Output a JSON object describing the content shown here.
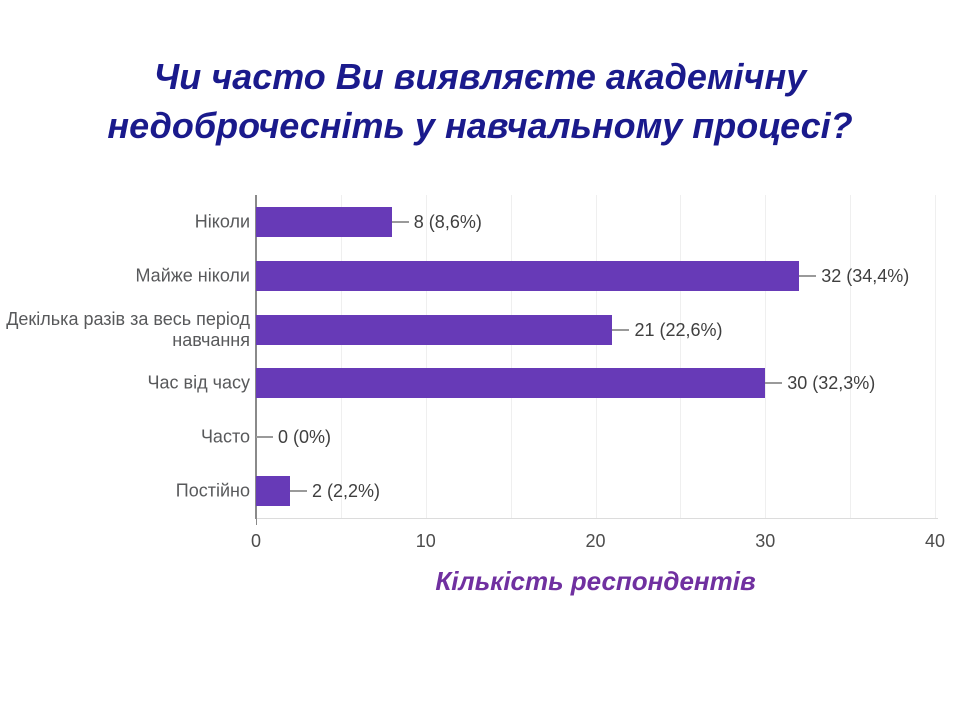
{
  "title": {
    "line1": "Чи часто Ви виявляєте академічну",
    "line2": "недоброчесніть у навчальному процесі?"
  },
  "chart_data": {
    "type": "bar",
    "orientation": "horizontal",
    "title": "Чи часто Ви виявляєте академічну недоброчесніть у навчальному процесі?",
    "categories": [
      "Ніколи",
      "Майже ніколи",
      "Декілька разів за весь період навчання",
      "Час від часу",
      "Часто",
      "Постійно"
    ],
    "category_labels": [
      "Ніколи",
      "Майже ніколи",
      "Декілька разів за весь період\nнавчання",
      "Час від часу",
      "Часто",
      "Постійно"
    ],
    "values": [
      8,
      32,
      21,
      30,
      0,
      2
    ],
    "value_labels": [
      "8 (8,6%)",
      "32 (34,4%)",
      "21 (22,6%)",
      "30 (32,3%)",
      "0 (0%)",
      "2 (2,2%)"
    ],
    "xlabel": "Кількість респондентів",
    "ylabel": "",
    "x_ticks": [
      0,
      10,
      20,
      30,
      40
    ],
    "xlim": [
      0,
      40
    ],
    "grid": "vertical gridlines every 5 units, legend none"
  },
  "colors": {
    "bar": "#673AB7",
    "title": "#1a1a8c",
    "xlabel": "#7030A0",
    "category_label": "#58595b",
    "value_label": "#3f3f3f",
    "tick_label": "#4c4c4c",
    "axis_line": "#8a8a8a",
    "baseline": "#dcdcdc",
    "gridline": "#efefef",
    "connector": "#9a9a9a"
  }
}
